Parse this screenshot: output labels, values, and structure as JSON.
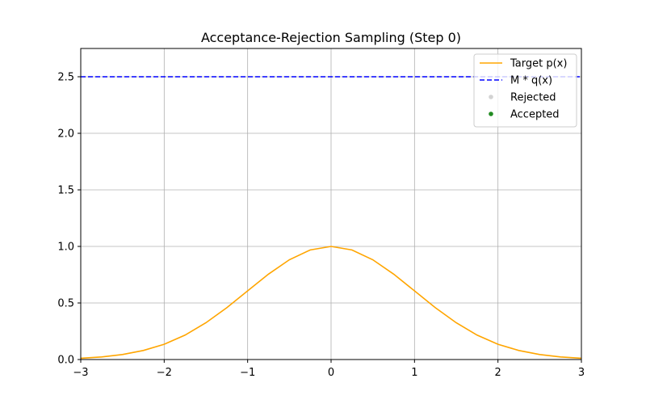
{
  "chart_data": {
    "type": "line",
    "title": "Acceptance-Rejection Sampling (Step 0)",
    "xlabel": "",
    "ylabel": "",
    "xlim": [
      -3,
      3
    ],
    "ylim": [
      0,
      2.75
    ],
    "x_ticks": [
      -3,
      -2,
      -1,
      0,
      1,
      2,
      3
    ],
    "x_tick_labels": [
      "−3",
      "−2",
      "−1",
      "0",
      "1",
      "2",
      "3"
    ],
    "y_ticks": [
      0.0,
      0.5,
      1.0,
      1.5,
      2.0,
      2.5
    ],
    "y_tick_labels": [
      "0.0",
      "0.5",
      "1.0",
      "1.5",
      "2.0",
      "2.5"
    ],
    "grid": true,
    "legend_position": "top-right",
    "series": [
      {
        "name": "Target p(x)",
        "kind": "line",
        "style": "solid",
        "color": "#ffa500",
        "x": [
          -3.0,
          -2.75,
          -2.5,
          -2.25,
          -2.0,
          -1.75,
          -1.5,
          -1.25,
          -1.0,
          -0.75,
          -0.5,
          -0.25,
          0.0,
          0.25,
          0.5,
          0.75,
          1.0,
          1.25,
          1.5,
          1.75,
          2.0,
          2.25,
          2.5,
          2.75,
          3.0
        ],
        "y": [
          0.011,
          0.023,
          0.044,
          0.08,
          0.135,
          0.216,
          0.325,
          0.458,
          0.607,
          0.755,
          0.882,
          0.969,
          1.0,
          0.969,
          0.882,
          0.755,
          0.607,
          0.458,
          0.325,
          0.216,
          0.135,
          0.08,
          0.044,
          0.023,
          0.011
        ]
      },
      {
        "name": "M * q(x)",
        "kind": "line",
        "style": "dashed",
        "color": "#0000ff",
        "x": [
          -3.0,
          3.0
        ],
        "y": [
          2.5,
          2.5
        ]
      },
      {
        "name": "Rejected",
        "kind": "scatter",
        "color": "#d3d3d3",
        "x": [],
        "y": []
      },
      {
        "name": "Accepted",
        "kind": "scatter",
        "color": "#228b22",
        "x": [],
        "y": []
      }
    ]
  }
}
